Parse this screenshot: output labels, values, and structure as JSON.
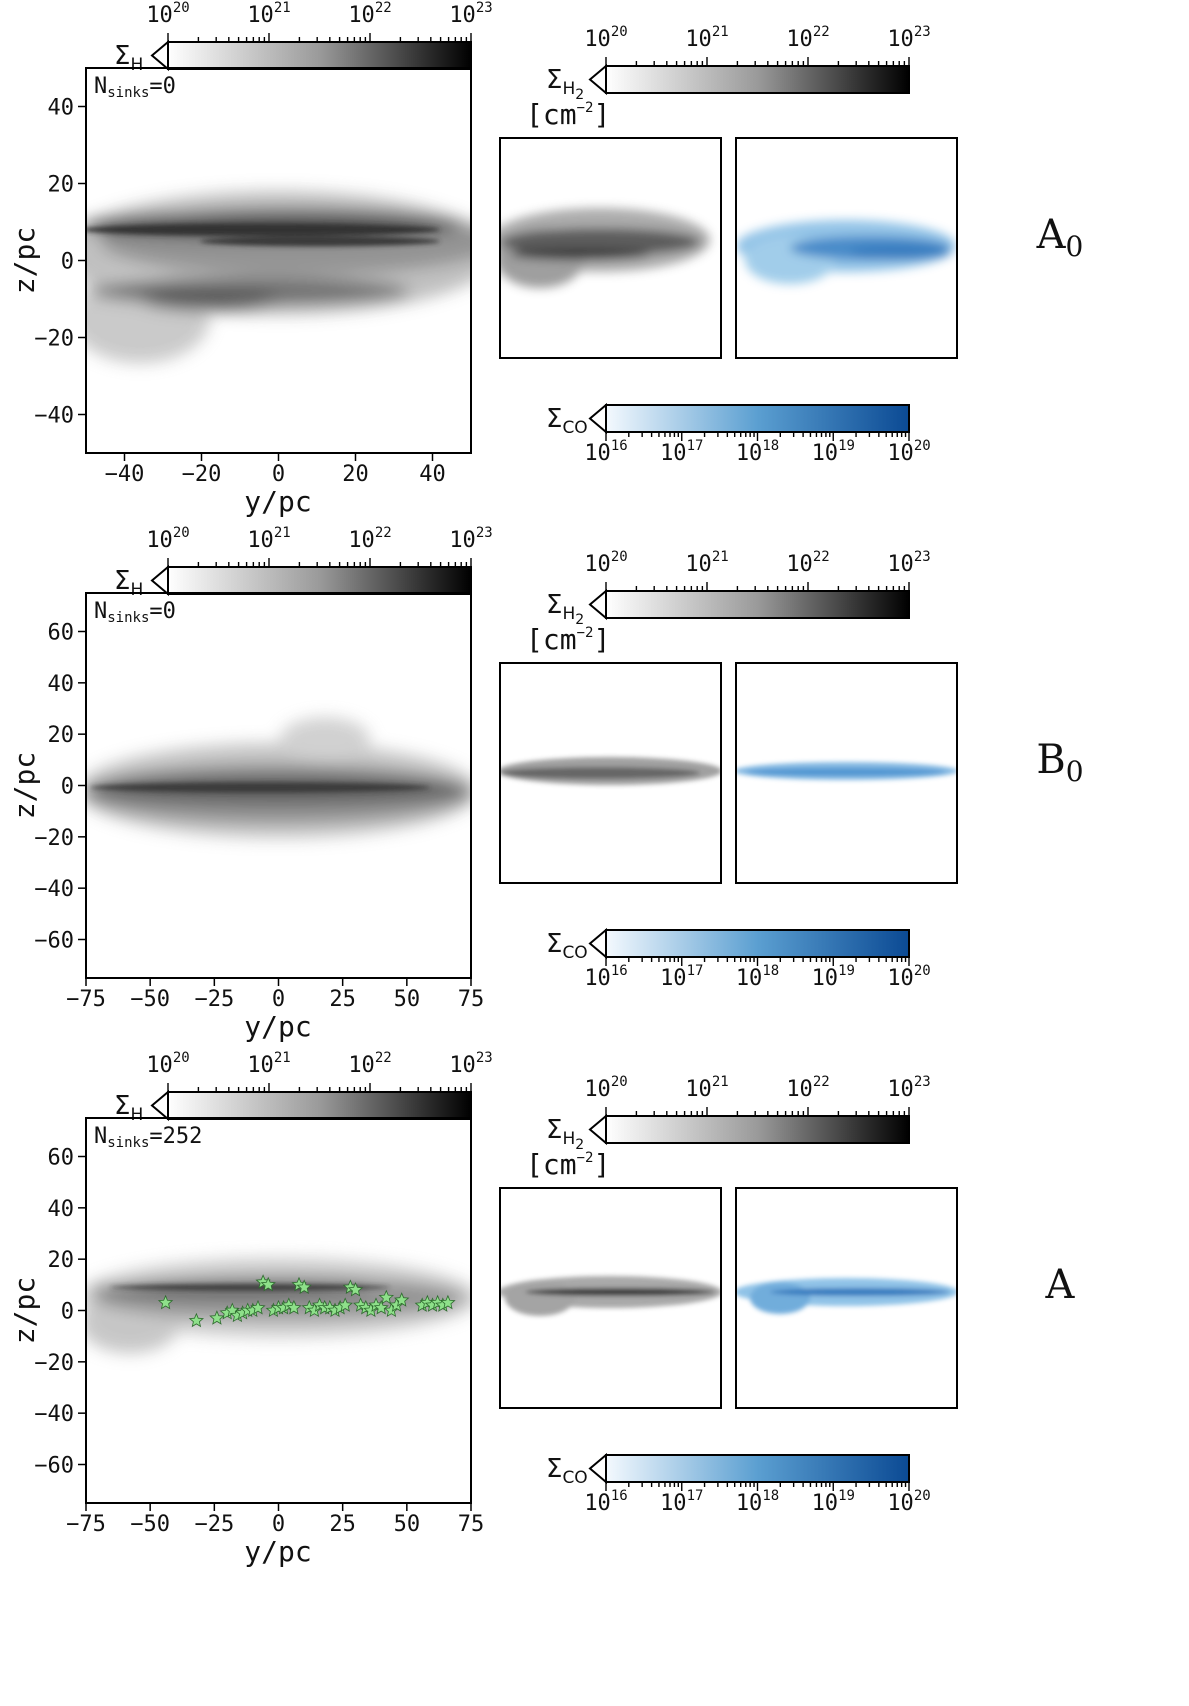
{
  "chart_data": [
    {
      "type": "heatmap",
      "row_label": "A0",
      "main": {
        "cbar_symbol": "Σ",
        "cbar_sub": "H",
        "cbar_ticks": [
          "20",
          "21",
          "22",
          "23"
        ],
        "annotation": "N",
        "annotation_sub": "sinks",
        "annotation_value": "=0",
        "xlabel": "y/pc",
        "ylabel": "z/pc",
        "xlim": [
          -50,
          50
        ],
        "ylim": [
          -50,
          50
        ],
        "xticks": [
          -40,
          -20,
          0,
          20,
          40
        ],
        "yticks": [
          40,
          20,
          0,
          -20,
          -40
        ],
        "sinks": []
      },
      "h2": {
        "cbar_symbol": "Σ",
        "cbar_sub": "H",
        "cbar_sub2": "2",
        "unit": "[cm",
        "unit_exp": "−2",
        "unit_close": "]",
        "cbar_ticks": [
          "20",
          "21",
          "22",
          "23"
        ]
      },
      "co": {
        "cbar_symbol": "Σ",
        "cbar_sub": "CO",
        "cbar_ticks": [
          "16",
          "17",
          "18",
          "19",
          "20"
        ]
      }
    },
    {
      "type": "heatmap",
      "row_label": "B0",
      "main": {
        "cbar_symbol": "Σ",
        "cbar_sub": "H",
        "cbar_ticks": [
          "20",
          "21",
          "22",
          "23"
        ],
        "annotation": "N",
        "annotation_sub": "sinks",
        "annotation_value": "=0",
        "xlabel": "y/pc",
        "ylabel": "z/pc",
        "xlim": [
          -75,
          75
        ],
        "ylim": [
          -75,
          75
        ],
        "xticks": [
          -75,
          -50,
          -25,
          0,
          25,
          50,
          75
        ],
        "yticks": [
          60,
          40,
          20,
          0,
          -20,
          -40,
          -60
        ],
        "sinks": []
      },
      "h2": {
        "cbar_symbol": "Σ",
        "cbar_sub": "H",
        "cbar_sub2": "2",
        "unit": "[cm",
        "unit_exp": "−2",
        "unit_close": "]",
        "cbar_ticks": [
          "20",
          "21",
          "22",
          "23"
        ]
      },
      "co": {
        "cbar_symbol": "Σ",
        "cbar_sub": "CO",
        "cbar_ticks": [
          "16",
          "17",
          "18",
          "19",
          "20"
        ]
      }
    },
    {
      "type": "heatmap",
      "row_label": "A",
      "main": {
        "cbar_symbol": "Σ",
        "cbar_sub": "H",
        "cbar_ticks": [
          "20",
          "21",
          "22",
          "23"
        ],
        "annotation": "N",
        "annotation_sub": "sinks",
        "annotation_value": "=252",
        "xlabel": "y/pc",
        "ylabel": "z/pc",
        "xlim": [
          -75,
          75
        ],
        "ylim": [
          -75,
          75
        ],
        "xticks": [
          -75,
          -50,
          -25,
          0,
          25,
          50,
          75
        ],
        "yticks": [
          60,
          40,
          20,
          0,
          -20,
          -40,
          -60
        ],
        "sinks": [
          [
            -44,
            3
          ],
          [
            -32,
            -4
          ],
          [
            -24,
            -3
          ],
          [
            -20,
            -1
          ],
          [
            -18,
            0
          ],
          [
            -16,
            -2
          ],
          [
            -14,
            -1
          ],
          [
            -12,
            0
          ],
          [
            -10,
            0
          ],
          [
            -8,
            1
          ],
          [
            -6,
            11
          ],
          [
            -4,
            10
          ],
          [
            -2,
            0
          ],
          [
            0,
            1
          ],
          [
            2,
            1
          ],
          [
            4,
            2
          ],
          [
            6,
            1
          ],
          [
            8,
            10
          ],
          [
            10,
            9
          ],
          [
            12,
            1
          ],
          [
            14,
            0
          ],
          [
            16,
            2
          ],
          [
            18,
            1
          ],
          [
            20,
            1
          ],
          [
            22,
            0
          ],
          [
            24,
            1
          ],
          [
            26,
            2
          ],
          [
            28,
            9
          ],
          [
            30,
            8
          ],
          [
            32,
            2
          ],
          [
            34,
            1
          ],
          [
            36,
            0
          ],
          [
            38,
            2
          ],
          [
            40,
            1
          ],
          [
            42,
            5
          ],
          [
            44,
            0
          ],
          [
            46,
            2
          ],
          [
            48,
            4
          ],
          [
            56,
            2
          ],
          [
            58,
            3
          ],
          [
            60,
            2
          ],
          [
            62,
            3
          ],
          [
            64,
            2
          ],
          [
            66,
            3
          ]
        ]
      },
      "h2": {
        "cbar_symbol": "Σ",
        "cbar_sub": "H",
        "cbar_sub2": "2",
        "unit": "[cm",
        "unit_exp": "−2",
        "unit_close": "]",
        "cbar_ticks": [
          "20",
          "21",
          "22",
          "23"
        ]
      },
      "co": {
        "cbar_symbol": "Σ",
        "cbar_sub": "CO",
        "cbar_ticks": [
          "16",
          "17",
          "18",
          "19",
          "20"
        ]
      }
    }
  ],
  "colors": {
    "gray_low": "#ffffff",
    "gray_high": "#000000",
    "blue_low": "#f4f9fe",
    "blue_high": "#0b4a94",
    "sink": "#8ee08a"
  }
}
